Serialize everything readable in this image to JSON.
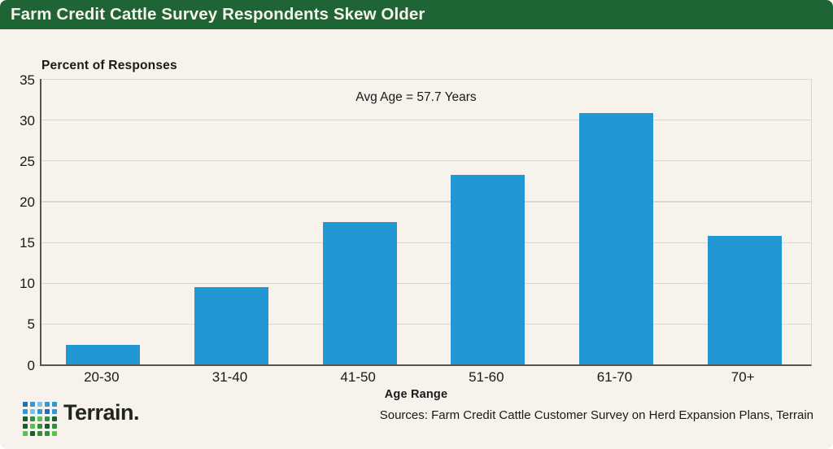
{
  "header": {
    "title": "Farm Credit Cattle Survey Respondents Skew Older"
  },
  "chart_data": {
    "type": "bar",
    "title": "Farm Credit Cattle Survey Respondents Skew Older",
    "ylabel_title": "Percent of Responses",
    "xlabel": "Age Range",
    "annotation": "Avg Age = 57.7 Years",
    "categories": [
      "20-30",
      "31-40",
      "41-50",
      "51-60",
      "61-70",
      "70+"
    ],
    "values": [
      2.4,
      9.5,
      17.5,
      23.2,
      30.8,
      15.8
    ],
    "ylim": [
      0,
      35
    ],
    "yticks": [
      0,
      5,
      10,
      15,
      20,
      25,
      30,
      35
    ],
    "grid": "horizontal",
    "legend": "none",
    "bar_color": "#2197D3"
  },
  "colors": {
    "background": "#F7F2EB",
    "header_green": "#1E6434",
    "bar_blue": "#2197D3",
    "text_dark": "#191918",
    "gridline": "#DCD7D0",
    "axis_spine": "#55544F"
  },
  "footer": {
    "brand": "Terrain.",
    "sources": "Sources: Farm Credit Cattle Customer Survey on Herd Expansion Plans, Terrain",
    "logo_icon": "terrain-mosaic-grid-icon",
    "logo_colors": [
      [
        "#1F6FB4",
        "#2F99D5",
        "#7CC3E9",
        "#2F99D5",
        "#2F99D5"
      ],
      [
        "#2F99D5",
        "#7CC3E9",
        "#2F99D5",
        "#1F6FB4",
        "#2F99D5"
      ],
      [
        "#1A5E2E",
        "#2F8F43",
        "#5FBE52",
        "#2F8F43",
        "#1A5E2E"
      ],
      [
        "#1A5E2E",
        "#5FBE52",
        "#2F8F43",
        "#1A5E2E",
        "#2F8F43"
      ],
      [
        "#5FBE52",
        "#1A5E2E",
        "#2F8F43",
        "#2F8F43",
        "#5FBE52"
      ]
    ]
  }
}
